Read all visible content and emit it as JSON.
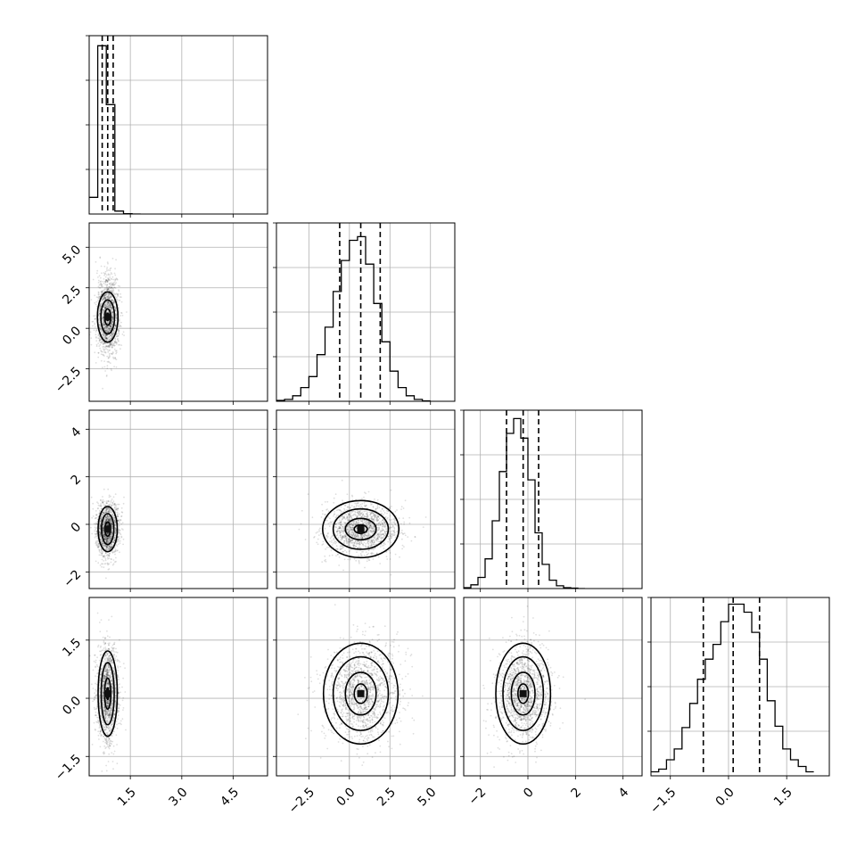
{
  "chart_data": {
    "type": "corner",
    "n_params": 4,
    "grid": true,
    "axis_ranges": [
      [
        0.3,
        5.5
      ],
      [
        -4.5,
        6.5
      ],
      [
        -2.7,
        4.8
      ],
      [
        -2.0,
        2.6
      ]
    ],
    "x_tick_values": [
      [
        1.5,
        3.0,
        4.5
      ],
      [
        -2.5,
        0.0,
        2.5,
        5.0
      ],
      [
        -2,
        0,
        2,
        4
      ],
      [
        -1.5,
        0.0,
        1.5
      ]
    ],
    "x_tick_labels": [
      [
        "1.5",
        "3.0",
        "4.5"
      ],
      [
        "−2.5",
        "0.0",
        "2.5",
        "5.0"
      ],
      [
        "−2",
        "0",
        "2",
        "4"
      ],
      [
        "−1.5",
        "0.0",
        "1.5"
      ]
    ],
    "y_tick_labels": [
      [],
      [
        "5.0",
        "2.5",
        "0.0",
        "−2.5"
      ],
      [
        "4",
        "2",
        "0",
        "−2"
      ],
      [
        "1.5",
        "0.0",
        "−1.5"
      ]
    ],
    "marginals": [
      {
        "param": 1,
        "bin_edges": [
          0.3,
          0.55,
          0.8,
          1.05,
          1.3,
          1.55,
          1.8
        ],
        "counts": [
          280,
          2830,
          1840,
          50,
          5,
          0
        ],
        "quantiles": [
          0.68,
          0.84,
          1.0
        ],
        "ylim": [
          0,
          3000
        ]
      },
      {
        "param": 2,
        "bin_edges": [
          -4.5,
          -4.0,
          -3.5,
          -3.0,
          -2.5,
          -2.0,
          -1.5,
          -1.0,
          -0.5,
          0.0,
          0.5,
          1.0,
          1.5,
          2.0,
          2.5,
          3.0,
          3.5,
          4.0,
          4.5,
          5.0
        ],
        "counts": [
          10,
          20,
          60,
          150,
          270,
          510,
          810,
          1200,
          1540,
          1760,
          1800,
          1500,
          1070,
          650,
          330,
          150,
          60,
          20,
          5
        ],
        "quantiles": [
          -0.6,
          0.7,
          1.9
        ],
        "ylim": [
          0,
          1950
        ]
      },
      {
        "param": 3,
        "bin_edges": [
          -2.7,
          -2.4,
          -2.1,
          -1.8,
          -1.5,
          -1.2,
          -0.9,
          -0.6,
          -0.3,
          0.0,
          0.3,
          0.6,
          0.9,
          1.2,
          1.5,
          1.8,
          2.1,
          2.4
        ],
        "counts": [
          10,
          40,
          120,
          320,
          730,
          1260,
          1670,
          1830,
          1620,
          1170,
          600,
          260,
          90,
          30,
          10,
          5,
          0
        ],
        "quantiles": [
          -0.9,
          -0.2,
          0.45
        ],
        "ylim": [
          0,
          1920
        ]
      },
      {
        "param": 4,
        "bin_edges": [
          -2.0,
          -1.8,
          -1.6,
          -1.4,
          -1.2,
          -1.0,
          -0.8,
          -0.6,
          -0.4,
          -0.2,
          0.0,
          0.2,
          0.4,
          0.6,
          0.8,
          1.0,
          1.2,
          1.4,
          1.6,
          1.8,
          2.0,
          2.2
        ],
        "counts": [
          30,
          50,
          120,
          200,
          360,
          540,
          720,
          870,
          980,
          1150,
          1280,
          1280,
          1220,
          1070,
          870,
          560,
          370,
          200,
          120,
          70,
          30
        ],
        "quantiles": [
          -0.65,
          0.12,
          0.8
        ],
        "ylim": [
          0,
          1330
        ]
      }
    ],
    "joint": [
      {
        "row": 2,
        "col": 1,
        "center": [
          0.84,
          0.7
        ],
        "spread": [
          0.16,
          1.15
        ],
        "levels": [
          [
            0.3,
            1.55
          ],
          [
            0.2,
            1.05
          ],
          [
            0.09,
            0.5
          ],
          [
            0.03,
            0.22
          ]
        ]
      },
      {
        "row": 3,
        "col": 1,
        "center": [
          0.84,
          -0.2
        ],
        "spread": [
          0.16,
          0.55
        ],
        "levels": [
          [
            0.28,
            0.95
          ],
          [
            0.18,
            0.65
          ],
          [
            0.08,
            0.3
          ],
          [
            0.03,
            0.12
          ]
        ]
      },
      {
        "row": 3,
        "col": 2,
        "center": [
          0.7,
          -0.2
        ],
        "spread": [
          1.15,
          0.55
        ],
        "levels": [
          [
            2.35,
            1.2
          ],
          [
            1.7,
            0.85
          ],
          [
            0.95,
            0.45
          ],
          [
            0.4,
            0.18
          ]
        ]
      },
      {
        "row": 4,
        "col": 1,
        "center": [
          0.84,
          0.12
        ],
        "spread": [
          0.16,
          0.62
        ],
        "levels": [
          [
            0.28,
            1.1
          ],
          [
            0.19,
            0.8
          ],
          [
            0.09,
            0.4
          ],
          [
            0.03,
            0.15
          ]
        ]
      },
      {
        "row": 4,
        "col": 2,
        "center": [
          0.7,
          0.12
        ],
        "spread": [
          1.15,
          0.62
        ],
        "levels": [
          [
            2.3,
            1.3
          ],
          [
            1.7,
            0.95
          ],
          [
            0.95,
            0.55
          ],
          [
            0.4,
            0.25
          ]
        ]
      },
      {
        "row": 4,
        "col": 3,
        "center": [
          -0.2,
          0.12
        ],
        "spread": [
          0.55,
          0.62
        ],
        "levels": [
          [
            1.15,
            1.3
          ],
          [
            0.85,
            0.95
          ],
          [
            0.5,
            0.55
          ],
          [
            0.22,
            0.25
          ]
        ]
      }
    ]
  }
}
